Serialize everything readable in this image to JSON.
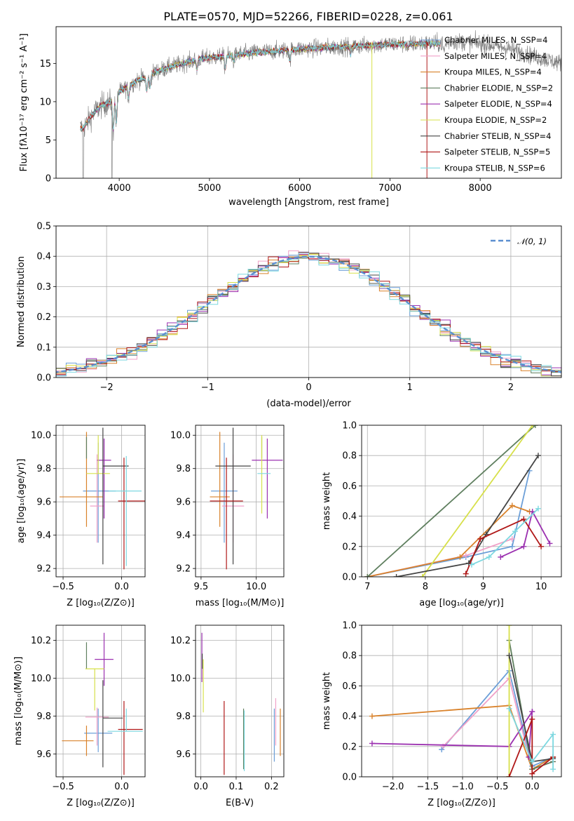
{
  "title": "PLATE=0570, MJD=52266, FIBERID=0228, z=0.061",
  "colors": [
    "#6c9fd8",
    "#f0a1c8",
    "#d9822b",
    "#5f7f5f",
    "#9b30b0",
    "#d7e04a",
    "#454545",
    "#b01818",
    "#7dd8e0"
  ],
  "chart_data": [
    {
      "id": "spectrum",
      "type": "line",
      "xlabel": "wavelength [Angstrom, rest frame]",
      "ylabel": "Flux [fλ10⁻¹⁷ erg cm⁻² s⁻¹ A⁻¹]",
      "xlim": [
        3300,
        8900
      ],
      "ylim": [
        0,
        19.8
      ],
      "xticks": [
        4000,
        5000,
        6000,
        7000,
        8000
      ],
      "yticks": [
        0,
        5,
        10,
        15
      ],
      "grid": false,
      "legend_position": "upper right",
      "legend": [
        "Chabrier MILES, N_SSP=4",
        "Salpeter MILES, N_SSP=4",
        "Kroupa MILES, N_SSP=4",
        "Chabrier ELODIE, N_SSP=2",
        "Salpeter ELODIE, N_SSP=4",
        "Kroupa ELODIE, N_SSP=2",
        "Chabrier STELIB, N_SSP=4",
        "Salpeter STELIB, N_SSP=5",
        "Kroupa STELIB, N_SSP=6"
      ],
      "continuum": [
        [
          3600,
          6.5
        ],
        [
          3700,
          8.3
        ],
        [
          3800,
          9.5
        ],
        [
          3900,
          9.9
        ],
        [
          4000,
          11.3
        ],
        [
          4100,
          12.0
        ],
        [
          4200,
          12.8
        ],
        [
          4300,
          13.2
        ],
        [
          4400,
          13.9
        ],
        [
          4500,
          14.3
        ],
        [
          4700,
          15.0
        ],
        [
          4900,
          15.6
        ],
        [
          5200,
          16.0
        ],
        [
          5500,
          16.4
        ],
        [
          6000,
          16.9
        ],
        [
          6500,
          17.2
        ],
        [
          7000,
          17.5
        ],
        [
          7400,
          17.6
        ],
        [
          7550,
          17.6
        ],
        [
          7700,
          17.9
        ],
        [
          8000,
          17.6
        ],
        [
          8300,
          17.0
        ],
        [
          8600,
          15.9
        ],
        [
          8900,
          15.0
        ]
      ],
      "observed_range": [
        3570,
        8900
      ],
      "model_range": [
        3570,
        7560
      ]
    },
    {
      "id": "residuals",
      "type": "histogram",
      "xlabel": "(data-model)/error",
      "ylabel": "Normed distribution",
      "xlim": [
        -2.5,
        2.5
      ],
      "ylim": [
        0,
        0.5
      ],
      "xticks": [
        -2,
        -1,
        0,
        1,
        2
      ],
      "yticks": [
        0.0,
        0.1,
        0.2,
        0.3,
        0.4,
        0.5
      ],
      "grid": true,
      "bin_width": 0.1,
      "reference_curve": "𝒩(0, 1)",
      "legend_position": "upper right"
    },
    {
      "id": "age-vs-z",
      "type": "errorbar",
      "xlabel": "Z [log₁₀(Z/Z⊙)]",
      "ylabel": "age  [log₁₀(age/yr)]",
      "xlim": [
        -0.56,
        0.2
      ],
      "ylim": [
        9.15,
        10.06
      ],
      "xticks": [
        -0.5,
        0.0
      ],
      "yticks": [
        9.2,
        9.4,
        9.6,
        9.8,
        10.0
      ],
      "grid": true,
      "points": [
        {
          "x": -0.2,
          "xerr": [
            0.13,
            0.15
          ],
          "y": 9.665,
          "yerr": [
            0.31,
            0.29
          ]
        },
        {
          "x": -0.21,
          "xerr": [
            0.06,
            0.06
          ],
          "y": 9.575,
          "yerr": [
            0.22,
            0.31
          ]
        },
        {
          "x": -0.3,
          "xerr": [
            0.23,
            0.14
          ],
          "y": 9.63,
          "yerr": [
            0.18,
            0.39
          ]
        },
        {
          "x": -0.3,
          "xerr": [
            0,
            0
          ],
          "y": 9.86,
          "yerr": [
            0,
            0.13
          ]
        },
        {
          "x": -0.15,
          "xerr": [
            0.06,
            0.06
          ],
          "y": 9.85,
          "yerr": [
            0.35,
            0.13
          ]
        },
        {
          "x": -0.2,
          "xerr": [
            0.1,
            0.1
          ],
          "y": 9.77,
          "yerr": [
            0,
            0.23
          ]
        },
        {
          "x": -0.16,
          "xerr": [
            0,
            0.22
          ],
          "y": 9.815,
          "yerr": [
            0.59,
            0.23
          ]
        },
        {
          "x": 0.02,
          "xerr": [
            0.05,
            0.18
          ],
          "y": 9.605,
          "yerr": [
            0.41,
            0.26
          ]
        },
        {
          "x": 0.04,
          "xerr": [
            0.15,
            0.13
          ],
          "y": 9.665,
          "yerr": [
            0.45,
            0.21
          ]
        }
      ]
    },
    {
      "id": "age-vs-mass",
      "type": "errorbar",
      "xlabel": "mass [log₁₀(M/M⊙)]",
      "ylabel": "",
      "xlim": [
        9.45,
        10.25
      ],
      "ylim": [
        9.15,
        10.06
      ],
      "xticks": [
        9.5,
        10.0
      ],
      "yticks": [
        9.2,
        9.4,
        9.6,
        9.8,
        10.0
      ],
      "grid": true,
      "points": [
        {
          "x": 9.71,
          "xerr": [
            0.12,
            0.12
          ],
          "y": 9.665,
          "yerr": [
            0.31,
            0.29
          ]
        },
        {
          "x": 9.79,
          "xerr": [
            0.1,
            0.1
          ],
          "y": 9.575,
          "yerr": [
            0.22,
            0.31
          ]
        },
        {
          "x": 9.67,
          "xerr": [
            0.09,
            0.09
          ],
          "y": 9.63,
          "yerr": [
            0.18,
            0.39
          ]
        },
        {
          "x": 10.05,
          "xerr": [
            0,
            0
          ],
          "y": 9.86,
          "yerr": [
            0,
            0.13
          ]
        },
        {
          "x": 10.1,
          "xerr": [
            0.14,
            0.14
          ],
          "y": 9.85,
          "yerr": [
            0.35,
            0.13
          ]
        },
        {
          "x": 10.05,
          "xerr": [
            0,
            0
          ],
          "y": 9.77,
          "yerr": [
            0.24,
            0.23
          ]
        },
        {
          "x": 9.79,
          "xerr": [
            0.16,
            0.16
          ],
          "y": 9.815,
          "yerr": [
            0.59,
            0.23
          ]
        },
        {
          "x": 9.73,
          "xerr": [
            0.15,
            0.15
          ],
          "y": 9.605,
          "yerr": [
            0.41,
            0.26
          ]
        },
        {
          "x": 10.07,
          "xerr": [
            0.06,
            0.06
          ],
          "y": 9.77,
          "yerr": [
            0,
            0
          ]
        }
      ]
    },
    {
      "id": "mass-weight-vs-age",
      "type": "line",
      "xlabel": "age  [log₁₀(age/yr)]",
      "ylabel": "mass weight",
      "xlim": [
        6.9,
        10.35
      ],
      "ylim": [
        0,
        1
      ],
      "xticks": [
        7,
        8,
        9,
        10
      ],
      "yticks": [
        0.0,
        0.2,
        0.4,
        0.6,
        0.8,
        1.0
      ],
      "grid": true,
      "series": [
        {
          "points": [
            [
              7.0,
              0
            ],
            [
              8.7,
              0.13
            ],
            [
              9.5,
              0.2
            ],
            [
              9.8,
              0.7
            ]
          ]
        },
        {
          "points": [
            [
              7.0,
              0
            ],
            [
              8.7,
              0.14
            ],
            [
              9.5,
              0.25
            ]
          ]
        },
        {
          "points": [
            [
              7.0,
              0
            ],
            [
              8.6,
              0.13
            ],
            [
              9.5,
              0.47
            ],
            [
              9.8,
              0.43
            ]
          ]
        },
        {
          "points": [
            [
              7.0,
              0
            ],
            [
              9.9,
              1.0
            ]
          ]
        },
        {
          "points": [
            [
              9.3,
              0.13
            ],
            [
              9.7,
              0.2
            ],
            [
              9.85,
              0.43
            ],
            [
              10.15,
              0.22
            ]
          ]
        },
        {
          "points": [
            [
              7.95,
              0
            ],
            [
              9.85,
              1.0
            ]
          ]
        },
        {
          "points": [
            [
              7.5,
              0
            ],
            [
              8.75,
              0.09
            ],
            [
              9.05,
              0.28
            ],
            [
              9.95,
              0.8
            ]
          ]
        },
        {
          "points": [
            [
              8.7,
              0.02
            ],
            [
              8.95,
              0.25
            ],
            [
              9.7,
              0.38
            ],
            [
              10.0,
              0.2
            ]
          ]
        },
        {
          "points": [
            [
              8.8,
              0.08
            ],
            [
              9.1,
              0.13
            ],
            [
              9.55,
              0.3
            ],
            [
              9.95,
              0.45
            ]
          ]
        }
      ]
    },
    {
      "id": "mass-vs-z",
      "type": "errorbar",
      "xlabel": "Z [log₁₀(Z/Z⊙)]",
      "ylabel": "mass [log₁₀(M/M⊙)]",
      "xlim": [
        -0.56,
        0.2
      ],
      "ylim": [
        9.48,
        10.28
      ],
      "xticks": [
        -0.5,
        0.0
      ],
      "yticks": [
        9.6,
        9.8,
        10.0,
        10.2
      ],
      "grid": true,
      "points": [
        {
          "x": -0.2,
          "xerr": [
            0.12,
            0.12
          ],
          "y": 9.71,
          "yerr": [
            0.1,
            0.13
          ]
        },
        {
          "x": -0.21,
          "xerr": [
            0.1,
            0.1
          ],
          "y": 9.795,
          "yerr": [
            0.15,
            0.05
          ]
        },
        {
          "x": -0.3,
          "xerr": [
            0.21,
            0.06
          ],
          "y": 9.67,
          "yerr": [
            0.08,
            0.08
          ]
        },
        {
          "x": -0.3,
          "xerr": [
            0,
            0
          ],
          "y": 10.05,
          "yerr": [
            0,
            0.14
          ]
        },
        {
          "x": -0.15,
          "xerr": [
            0.08,
            0.08
          ],
          "y": 10.1,
          "yerr": [
            0.14,
            0.14
          ]
        },
        {
          "x": -0.23,
          "xerr": [
            0.08,
            0.08
          ],
          "y": 10.05,
          "yerr": [
            0.22,
            0
          ]
        },
        {
          "x": -0.16,
          "xerr": [
            0,
            0.17
          ],
          "y": 9.79,
          "yerr": [
            0.26,
            0.2
          ]
        },
        {
          "x": 0.02,
          "xerr": [
            0.05,
            0.16
          ],
          "y": 9.73,
          "yerr": [
            0.24,
            0.15
          ]
        },
        {
          "x": 0.04,
          "xerr": [
            0.16,
            0.14
          ],
          "y": 9.72,
          "yerr": [
            0,
            0.12
          ]
        }
      ]
    },
    {
      "id": "mass-vs-ebv",
      "type": "errorbar",
      "xlabel": "E(B-V)",
      "ylabel": "",
      "xlim": [
        -0.015,
        0.235
      ],
      "ylim": [
        9.48,
        10.28
      ],
      "xticks": [
        0.0,
        0.1,
        0.2
      ],
      "yticks": [
        9.6,
        9.8,
        10.0,
        10.2
      ],
      "grid": true,
      "points": [
        {
          "x": 0.208,
          "xerr": [
            0,
            0
          ],
          "y": 9.71,
          "yerr": [
            0.15,
            0.13
          ]
        },
        {
          "x": 0.212,
          "xerr": [
            0,
            0
          ],
          "y": 9.795,
          "yerr": [
            0.15,
            0.1
          ]
        },
        {
          "x": 0.225,
          "xerr": [
            0,
            0
          ],
          "y": 9.72,
          "yerr": [
            0.13,
            0.12
          ]
        },
        {
          "x": 0.121,
          "xerr": [
            0,
            0
          ],
          "y": 9.68,
          "yerr": [
            0.16,
            0.16
          ]
        },
        {
          "x": 0.003,
          "xerr": [
            0,
            0
          ],
          "y": 10.1,
          "yerr": [
            0.12,
            0.14
          ]
        },
        {
          "x": 0.007,
          "xerr": [
            0,
            0
          ],
          "y": 10.0,
          "yerr": [
            0.18,
            0.1
          ]
        },
        {
          "x": 0.004,
          "xerr": [
            0,
            0
          ],
          "y": 10.05,
          "yerr": [
            0,
            0.08
          ]
        },
        {
          "x": 0.066,
          "xerr": [
            0,
            0
          ],
          "y": 9.69,
          "yerr": [
            0.2,
            0.19
          ]
        },
        {
          "x": 0.123,
          "xerr": [
            0,
            0
          ],
          "y": 9.68,
          "yerr": [
            0.17,
            0.15
          ]
        }
      ]
    },
    {
      "id": "mass-weight-vs-z",
      "type": "line",
      "xlabel": "Z [log₁₀(Z/Z⊙)]",
      "ylabel": "mass weight",
      "xlim": [
        -2.45,
        0.42
      ],
      "ylim": [
        0,
        1
      ],
      "xticks": [
        -2.0,
        -1.5,
        -1.0,
        -0.5,
        0.0
      ],
      "yticks": [
        0.0,
        0.2,
        0.4,
        0.6,
        0.8,
        1.0
      ],
      "grid": true,
      "series": [
        {
          "points": [
            [
              -1.3,
              0.18
            ],
            [
              -0.33,
              0.7
            ],
            [
              0.0,
              0.07
            ],
            [
              0.3,
              0.13
            ]
          ]
        },
        {
          "points": [
            [
              -1.28,
              0.2
            ],
            [
              -0.33,
              0.65
            ],
            [
              0.0,
              0.05
            ],
            [
              0.3,
              0.1
            ]
          ]
        },
        {
          "points": [
            [
              -2.3,
              0.4
            ],
            [
              -0.33,
              0.47
            ],
            [
              0.0,
              0.05
            ],
            [
              0.3,
              0.13
            ]
          ]
        },
        {
          "points": [
            [
              -0.33,
              0.9
            ],
            [
              0.0,
              0.05
            ],
            [
              0.3,
              0.1
            ]
          ]
        },
        {
          "points": [
            [
              -2.3,
              0.22
            ],
            [
              -0.33,
              0.2
            ],
            [
              0.0,
              0.43
            ],
            [
              -0.05,
              0.13
            ]
          ]
        },
        {
          "points": [
            [
              -0.33,
              1.0
            ],
            [
              -0.33,
              0.0
            ]
          ]
        },
        {
          "points": [
            [
              -0.33,
              0.8
            ],
            [
              0.0,
              0.1
            ],
            [
              0.3,
              0.12
            ]
          ]
        },
        {
          "points": [
            [
              -0.33,
              0.0
            ],
            [
              0.0,
              0.38
            ],
            [
              0.0,
              0.02
            ],
            [
              0.3,
              0.13
            ]
          ]
        },
        {
          "points": [
            [
              -0.33,
              0.45
            ],
            [
              0.0,
              0.1
            ],
            [
              0.3,
              0.28
            ],
            [
              0.3,
              0.05
            ]
          ]
        }
      ]
    }
  ]
}
